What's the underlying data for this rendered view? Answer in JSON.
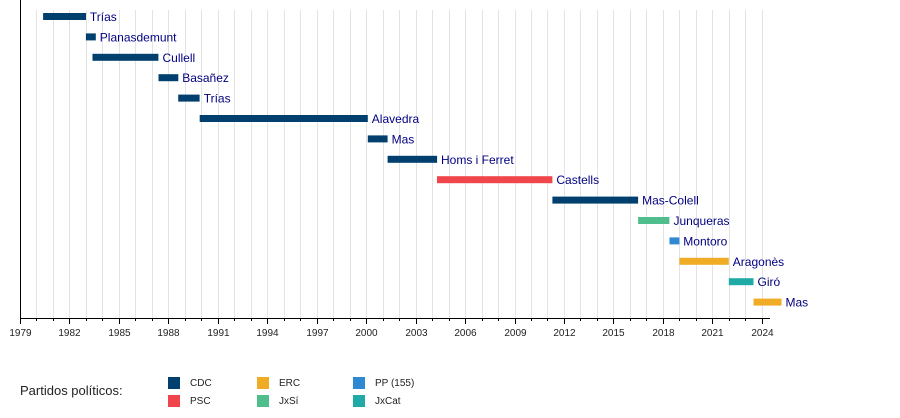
{
  "chart_data": {
    "type": "timeline",
    "title": "",
    "xlabel": "",
    "ylabel": "",
    "xlim": [
      1979,
      2025
    ],
    "x_ticks": [
      1979,
      1982,
      1985,
      1988,
      1991,
      1994,
      1997,
      2000,
      2003,
      2006,
      2009,
      2012,
      2015,
      2018,
      2021,
      2024
    ],
    "bars": [
      {
        "name": "Trías",
        "party": "CDC",
        "start": 1980.4,
        "end": 1983.0
      },
      {
        "name": "Planasdemunt",
        "party": "CDC",
        "start": 1983.0,
        "end": 1983.6
      },
      {
        "name": "Cullell",
        "party": "CDC",
        "start": 1983.4,
        "end": 1987.4
      },
      {
        "name": "Basañez",
        "party": "CDC",
        "start": 1987.4,
        "end": 1988.6
      },
      {
        "name": "Trías",
        "party": "CDC",
        "start": 1988.6,
        "end": 1989.9
      },
      {
        "name": "Alavedra",
        "party": "CDC",
        "start": 1989.9,
        "end": 2000.1
      },
      {
        "name": "Mas",
        "party": "CDC",
        "start": 2000.1,
        "end": 2001.3
      },
      {
        "name": "Homs i Ferret",
        "party": "CDC",
        "start": 2001.3,
        "end": 2004.3
      },
      {
        "name": "Castells",
        "party": "PSC",
        "start": 2004.3,
        "end": 2011.3
      },
      {
        "name": "Mas-Colell",
        "party": "CDC",
        "start": 2011.3,
        "end": 2016.5
      },
      {
        "name": "Junqueras",
        "party": "JxSí",
        "start": 2016.5,
        "end": 2018.4
      },
      {
        "name": "Montoro",
        "party": "PP",
        "start": 2018.4,
        "end": 2019.0
      },
      {
        "name": "Aragonès",
        "party": "ERC",
        "start": 2019.0,
        "end": 2022.0
      },
      {
        "name": "Giró",
        "party": "JxCat",
        "start": 2022.0,
        "end": 2023.5
      },
      {
        "name": "Mas",
        "party": "ERC",
        "start": 2023.5,
        "end": 2025.2
      }
    ],
    "legend": {
      "title": "Partidos políticos:",
      "entries": [
        {
          "key": "CDC",
          "label": "CDC",
          "color": "#003f6e"
        },
        {
          "key": "PSC",
          "label": "PSC",
          "color": "#f0464b"
        },
        {
          "key": "ERC",
          "label": "ERC",
          "color": "#f1ac25"
        },
        {
          "key": "JxSí",
          "label": "JxSí",
          "color": "#4fbd8c"
        },
        {
          "key": "PP",
          "label": "PP (155)",
          "color": "#2e89d2"
        },
        {
          "key": "JxCat",
          "label": "JxCat",
          "color": "#20aaa5"
        }
      ]
    }
  }
}
